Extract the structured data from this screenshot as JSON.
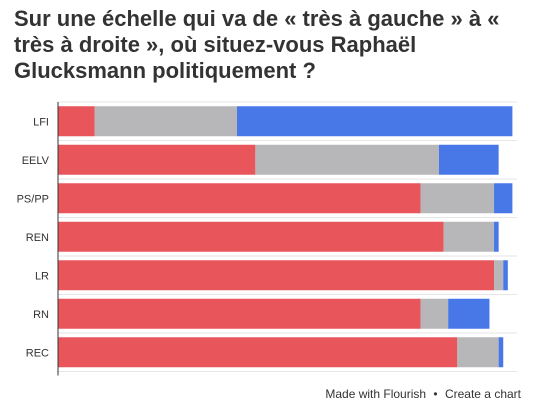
{
  "chart_data": {
    "type": "bar",
    "orientation": "horizontal",
    "stacked": true,
    "title": "Sur une échelle qui va de « très à gauche » à « très à droite », où situez-vous Raphaël Glucksmann politiquement ?",
    "categories": [
      "LFI",
      "EELV",
      "PS/PP",
      "REN",
      "LR",
      "RN",
      "REC"
    ],
    "series": [
      {
        "color": "#e8565b",
        "values": [
          8,
          43,
          79,
          84,
          95,
          79,
          87
        ]
      },
      {
        "color": "#b7b7ba",
        "values": [
          31,
          40,
          16,
          11,
          2,
          6,
          9
        ]
      },
      {
        "color": "#4878e8",
        "values": [
          60,
          13,
          4,
          1,
          1,
          9,
          1
        ]
      }
    ],
    "xlim": [
      0,
      100
    ],
    "grid": "horizontal separators",
    "legend": "none"
  },
  "footer": {
    "made_with": "Made with Flourish",
    "separator": "•",
    "create": "Create a chart"
  }
}
